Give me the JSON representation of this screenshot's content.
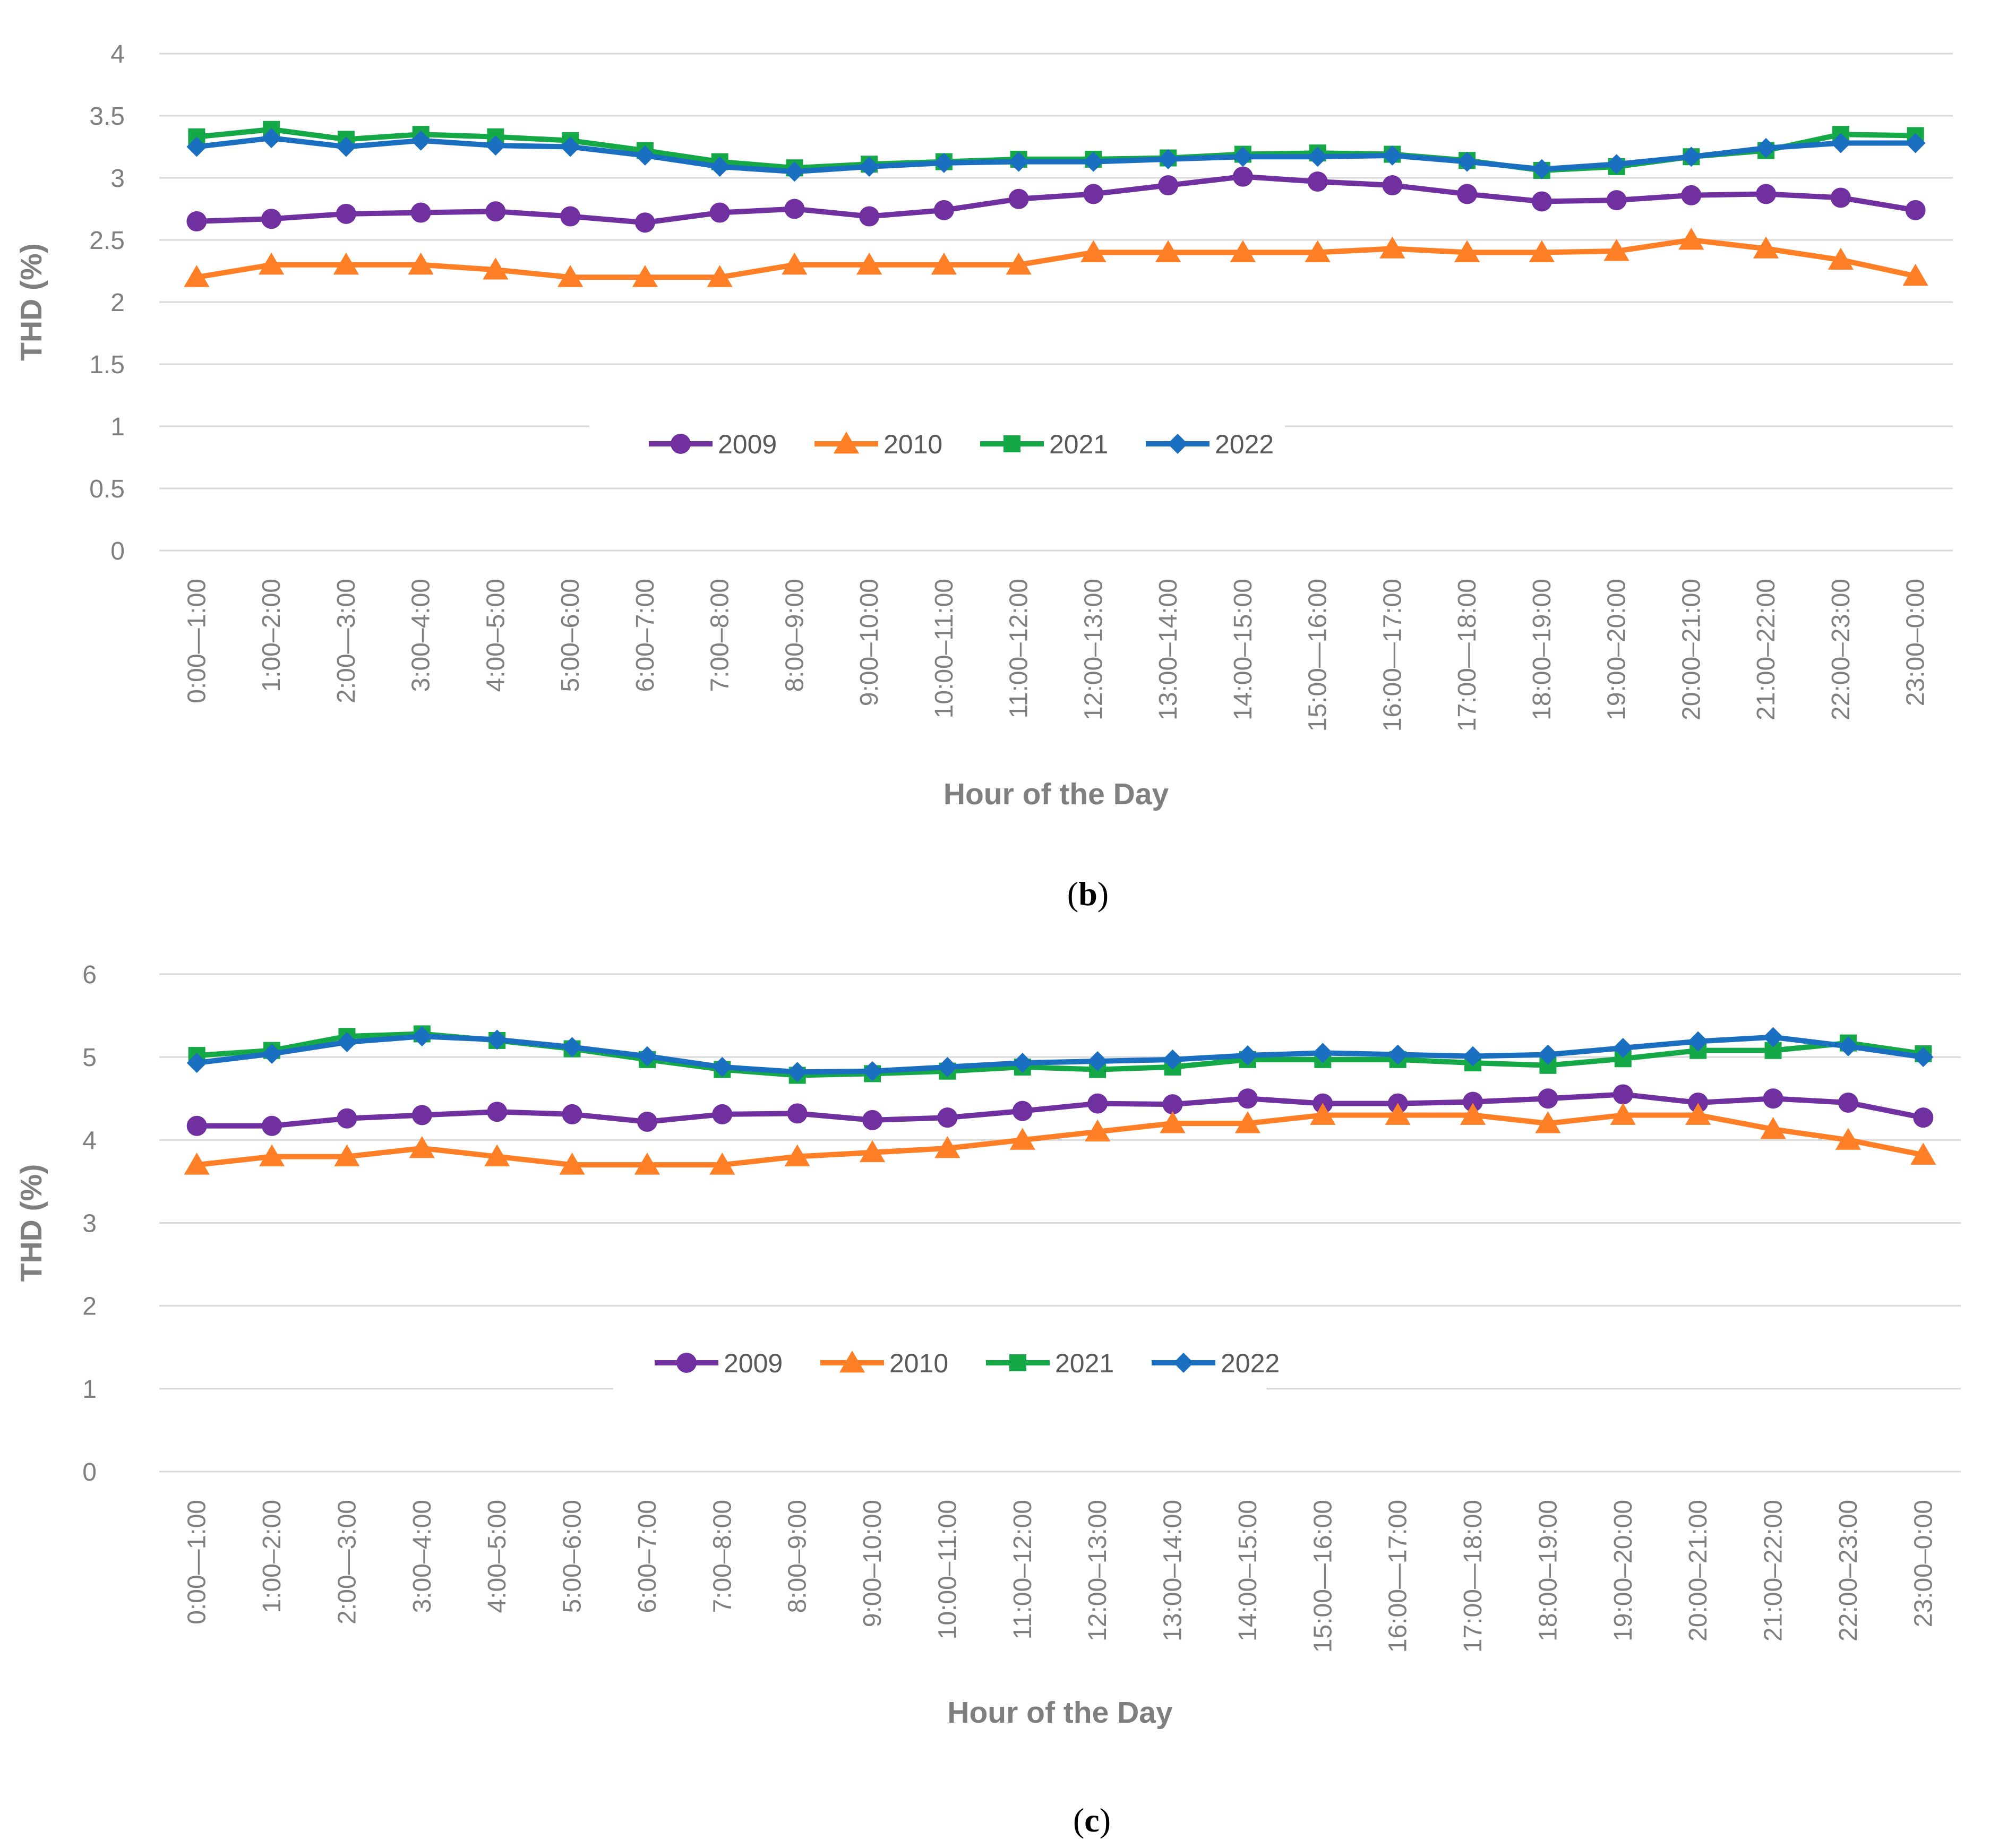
{
  "colors": {
    "2009": "#7030a0",
    "2010": "#ff7f27",
    "2021": "#14a846",
    "2022": "#1a6fc0",
    "grid": "#d9d9d9",
    "tick": "#7f7f7f"
  },
  "chart_data": [
    {
      "type": "line",
      "caption": {
        "open": "(",
        "letter": "b",
        "close": ")"
      },
      "title": "",
      "xlabel": "Hour of the Day",
      "ylabel": "THD (%)",
      "ylim": [
        0,
        4
      ],
      "yticks": [
        "0",
        "0.5",
        "1",
        "1.5",
        "2",
        "2.5",
        "3",
        "3.5",
        "4"
      ],
      "ytick_values": [
        0,
        0.5,
        1,
        1.5,
        2,
        2.5,
        3,
        3.5,
        4
      ],
      "grid": true,
      "legend_position": "center",
      "categories": [
        "0:00—1:00",
        "1:00–2:00",
        "2:00—3:00",
        "3:00–4:00",
        "4:00–5:00",
        "5:00–6:00",
        "6:00–7:00",
        "7:00–8:00",
        "8:00–9:00",
        "9:00–10:00",
        "10:00–11:00",
        "11:00–12:00",
        "12:00–13:00",
        "13:00–14:00",
        "14:00–15:00",
        "15:00—16:00",
        "16:00—17:00",
        "17:00—18:00",
        "18:00–19:00",
        "19:00–20:00",
        "20:00–21:00",
        "21:00–22:00",
        "22:00–23:00",
        "23:00–0:00"
      ],
      "series": [
        {
          "name": "2009",
          "marker": "circle",
          "values": [
            2.65,
            2.67,
            2.71,
            2.72,
            2.73,
            2.69,
            2.64,
            2.72,
            2.75,
            2.69,
            2.74,
            2.83,
            2.87,
            2.94,
            3.01,
            2.97,
            2.94,
            2.87,
            2.81,
            2.82,
            2.86,
            2.87,
            2.84,
            2.74
          ]
        },
        {
          "name": "2010",
          "marker": "triangle",
          "values": [
            2.2,
            2.3,
            2.3,
            2.3,
            2.26,
            2.2,
            2.2,
            2.2,
            2.3,
            2.3,
            2.3,
            2.3,
            2.4,
            2.4,
            2.4,
            2.4,
            2.43,
            2.4,
            2.4,
            2.41,
            2.5,
            2.43,
            2.34,
            2.21
          ]
        },
        {
          "name": "2021",
          "marker": "square",
          "values": [
            3.33,
            3.39,
            3.31,
            3.35,
            3.33,
            3.3,
            3.22,
            3.13,
            3.08,
            3.11,
            3.13,
            3.15,
            3.15,
            3.16,
            3.19,
            3.2,
            3.19,
            3.14,
            3.06,
            3.09,
            3.17,
            3.22,
            3.35,
            3.34
          ]
        },
        {
          "name": "2022",
          "marker": "diamond",
          "values": [
            3.25,
            3.32,
            3.25,
            3.3,
            3.26,
            3.25,
            3.18,
            3.09,
            3.05,
            3.09,
            3.12,
            3.13,
            3.13,
            3.15,
            3.17,
            3.17,
            3.18,
            3.13,
            3.07,
            3.11,
            3.17,
            3.24,
            3.28,
            3.28
          ]
        }
      ]
    },
    {
      "type": "line",
      "caption": {
        "open": "(",
        "letter": "c",
        "close": ")"
      },
      "title": "",
      "xlabel": "Hour of the Day",
      "ylabel": "THD (%)",
      "ylim": [
        0,
        6
      ],
      "yticks": [
        "0",
        "1",
        "2",
        "3",
        "4",
        "5",
        "6"
      ],
      "ytick_values": [
        0,
        1,
        2,
        3,
        4,
        5,
        6
      ],
      "grid": true,
      "legend_position": "center",
      "categories": [
        "0:00—1:00",
        "1:00–2:00",
        "2:00—3:00",
        "3:00–4:00",
        "4:00–5:00",
        "5:00–6:00",
        "6:00–7:00",
        "7:00–8:00",
        "8:00–9:00",
        "9:00–10:00",
        "10:00–11:00",
        "11:00–12:00",
        "12:00–13:00",
        "13:00–14:00",
        "14:00–15:00",
        "15:00—16:00",
        "16:00—17:00",
        "17:00—18:00",
        "18:00–19:00",
        "19:00–20:00",
        "20:00–21:00",
        "21:00–22:00",
        "22:00–23:00",
        "23:00–0:00"
      ],
      "series": [
        {
          "name": "2009",
          "marker": "circle",
          "values": [
            4.17,
            4.17,
            4.26,
            4.3,
            4.34,
            4.31,
            4.22,
            4.31,
            4.32,
            4.24,
            4.27,
            4.35,
            4.44,
            4.43,
            4.5,
            4.44,
            4.44,
            4.46,
            4.5,
            4.55,
            4.45,
            4.5,
            4.45,
            4.27
          ]
        },
        {
          "name": "2010",
          "marker": "triangle",
          "values": [
            3.7,
            3.8,
            3.8,
            3.9,
            3.8,
            3.7,
            3.7,
            3.7,
            3.8,
            3.85,
            3.9,
            4.0,
            4.1,
            4.2,
            4.2,
            4.3,
            4.3,
            4.3,
            4.2,
            4.3,
            4.3,
            4.13,
            4.0,
            3.82
          ]
        },
        {
          "name": "2021",
          "marker": "square",
          "values": [
            5.02,
            5.08,
            5.25,
            5.28,
            5.2,
            5.1,
            4.97,
            4.85,
            4.78,
            4.8,
            4.83,
            4.88,
            4.85,
            4.88,
            4.97,
            4.97,
            4.97,
            4.93,
            4.9,
            4.98,
            5.08,
            5.08,
            5.17,
            5.04
          ]
        },
        {
          "name": "2022",
          "marker": "diamond",
          "values": [
            4.93,
            5.04,
            5.18,
            5.25,
            5.21,
            5.12,
            5.01,
            4.88,
            4.82,
            4.83,
            4.88,
            4.93,
            4.95,
            4.97,
            5.02,
            5.05,
            5.03,
            5.01,
            5.03,
            5.11,
            5.19,
            5.24,
            5.13,
            5.0
          ]
        }
      ]
    }
  ]
}
